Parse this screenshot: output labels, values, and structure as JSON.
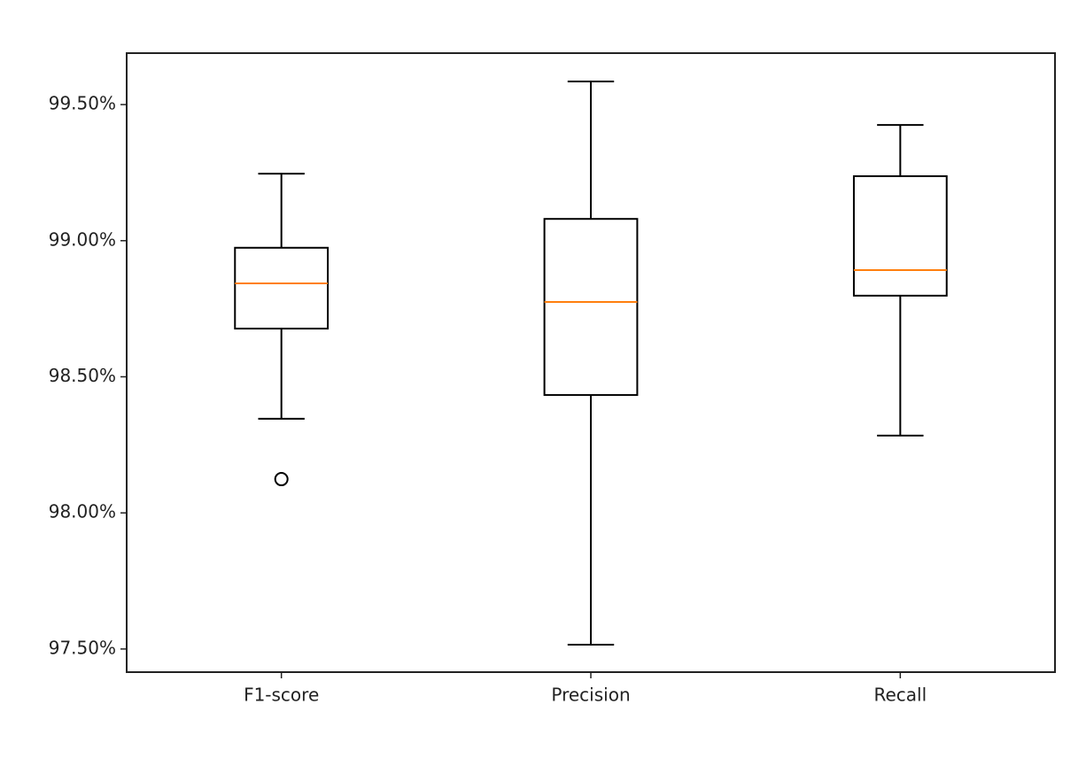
{
  "chart_data": {
    "type": "box",
    "categories": [
      "F1-score",
      "Precision",
      "Recall"
    ],
    "boxes": [
      {
        "whislo": 98.346,
        "q1": 98.677,
        "med": 98.843,
        "q3": 98.974,
        "whishi": 99.246,
        "fliers": [
          98.124
        ]
      },
      {
        "whislo": 97.516,
        "q1": 98.433,
        "med": 98.775,
        "q3": 99.08,
        "whishi": 99.585,
        "fliers": []
      },
      {
        "whislo": 98.284,
        "q1": 98.798,
        "med": 98.892,
        "q3": 99.237,
        "whishi": 99.425,
        "fliers": []
      }
    ],
    "box_color": "#000000",
    "median_color": "#ff7f0e",
    "ylim": [
      97.415,
      99.689
    ],
    "yticks": [
      {
        "value": 97.5,
        "label": "97.50%"
      },
      {
        "value": 98.0,
        "label": "98.00%"
      },
      {
        "value": 98.5,
        "label": "98.50%"
      },
      {
        "value": 99.0,
        "label": "99.00%"
      },
      {
        "value": 99.5,
        "label": "99.50%"
      }
    ]
  }
}
